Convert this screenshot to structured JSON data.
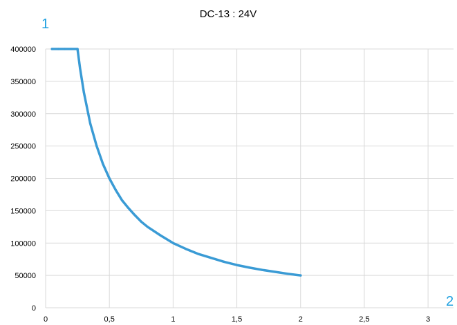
{
  "chart_data": {
    "type": "line",
    "title": "DC-13 : 24V",
    "xlabel": "",
    "ylabel": "",
    "corner_labels": {
      "y_axis": "1",
      "x_axis": "2"
    },
    "x_ticks": [
      "0",
      "0,5",
      "1",
      "1,5",
      "2",
      "2,5",
      "3"
    ],
    "y_ticks": [
      "0",
      "50000",
      "100000",
      "150000",
      "200000",
      "250000",
      "300000",
      "350000",
      "400000"
    ],
    "xlim": [
      0,
      3.2
    ],
    "ylim": [
      0,
      400000
    ],
    "grid": {
      "vertical": true,
      "horizontal": true
    },
    "colors": {
      "line": "#3a9bd5",
      "grid": "#d9d9d9",
      "corner_label": "#1fa0e0"
    },
    "series": [
      {
        "values": [
          [
            0.05,
            400000
          ],
          [
            0.1,
            400000
          ],
          [
            0.15,
            400000
          ],
          [
            0.2,
            400000
          ],
          [
            0.25,
            400000
          ],
          [
            0.27,
            370000
          ],
          [
            0.3,
            333000
          ],
          [
            0.35,
            285000
          ],
          [
            0.4,
            250000
          ],
          [
            0.45,
            222000
          ],
          [
            0.5,
            200000
          ],
          [
            0.55,
            182000
          ],
          [
            0.6,
            166000
          ],
          [
            0.65,
            154000
          ],
          [
            0.7,
            143000
          ],
          [
            0.75,
            133000
          ],
          [
            0.8,
            125000
          ],
          [
            0.9,
            112000
          ],
          [
            1.0,
            100000
          ],
          [
            1.1,
            91000
          ],
          [
            1.2,
            83000
          ],
          [
            1.3,
            77000
          ],
          [
            1.4,
            71000
          ],
          [
            1.5,
            66000
          ],
          [
            1.6,
            62000
          ],
          [
            1.7,
            58500
          ],
          [
            1.8,
            55500
          ],
          [
            1.9,
            52500
          ],
          [
            2.0,
            50000
          ]
        ]
      }
    ]
  }
}
